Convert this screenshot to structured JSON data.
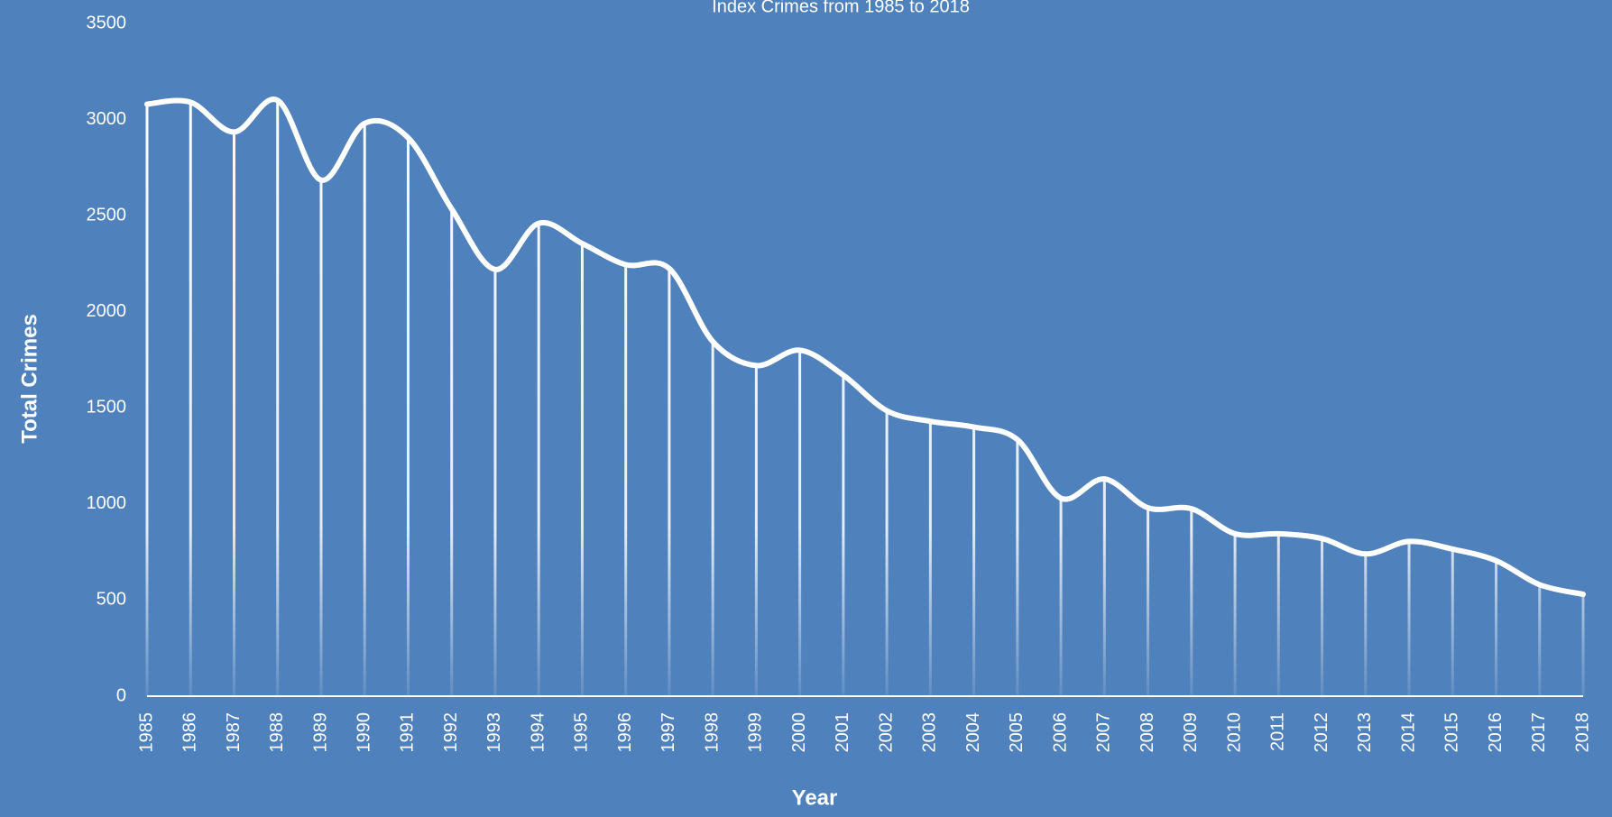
{
  "chart_data": {
    "type": "line",
    "title": "Index Crimes from 1985 to 2018",
    "x_label": "Year",
    "y_label": "Total Crimes",
    "categories": [
      "1985",
      "1986",
      "1987",
      "1988",
      "1989",
      "1990",
      "1991",
      "1992",
      "1993",
      "1994",
      "1995",
      "1996",
      "1997",
      "1998",
      "1999",
      "2000",
      "2001",
      "2002",
      "2003",
      "2004",
      "2005",
      "2006",
      "2007",
      "2008",
      "2009",
      "2010",
      "2011",
      "2012",
      "2013",
      "2014",
      "2015",
      "2016",
      "2017",
      "2018"
    ],
    "series": [
      {
        "name": "Total Crimes",
        "color": "#ffffff",
        "values": [
          3080,
          3090,
          2935,
          3100,
          2685,
          2980,
          2905,
          2535,
          2220,
          2460,
          2355,
          2245,
          2225,
          1845,
          1720,
          1800,
          1670,
          1485,
          1430,
          1400,
          1335,
          1030,
          1130,
          980,
          975,
          845,
          845,
          820,
          740,
          805,
          765,
          705,
          580,
          530
        ]
      }
    ],
    "ylim": [
      0,
      3500
    ],
    "yticks": [
      0,
      500,
      1000,
      1500,
      2000,
      2500,
      3000,
      3500
    ],
    "grid": false,
    "smooth": true,
    "drop_lines": true
  }
}
